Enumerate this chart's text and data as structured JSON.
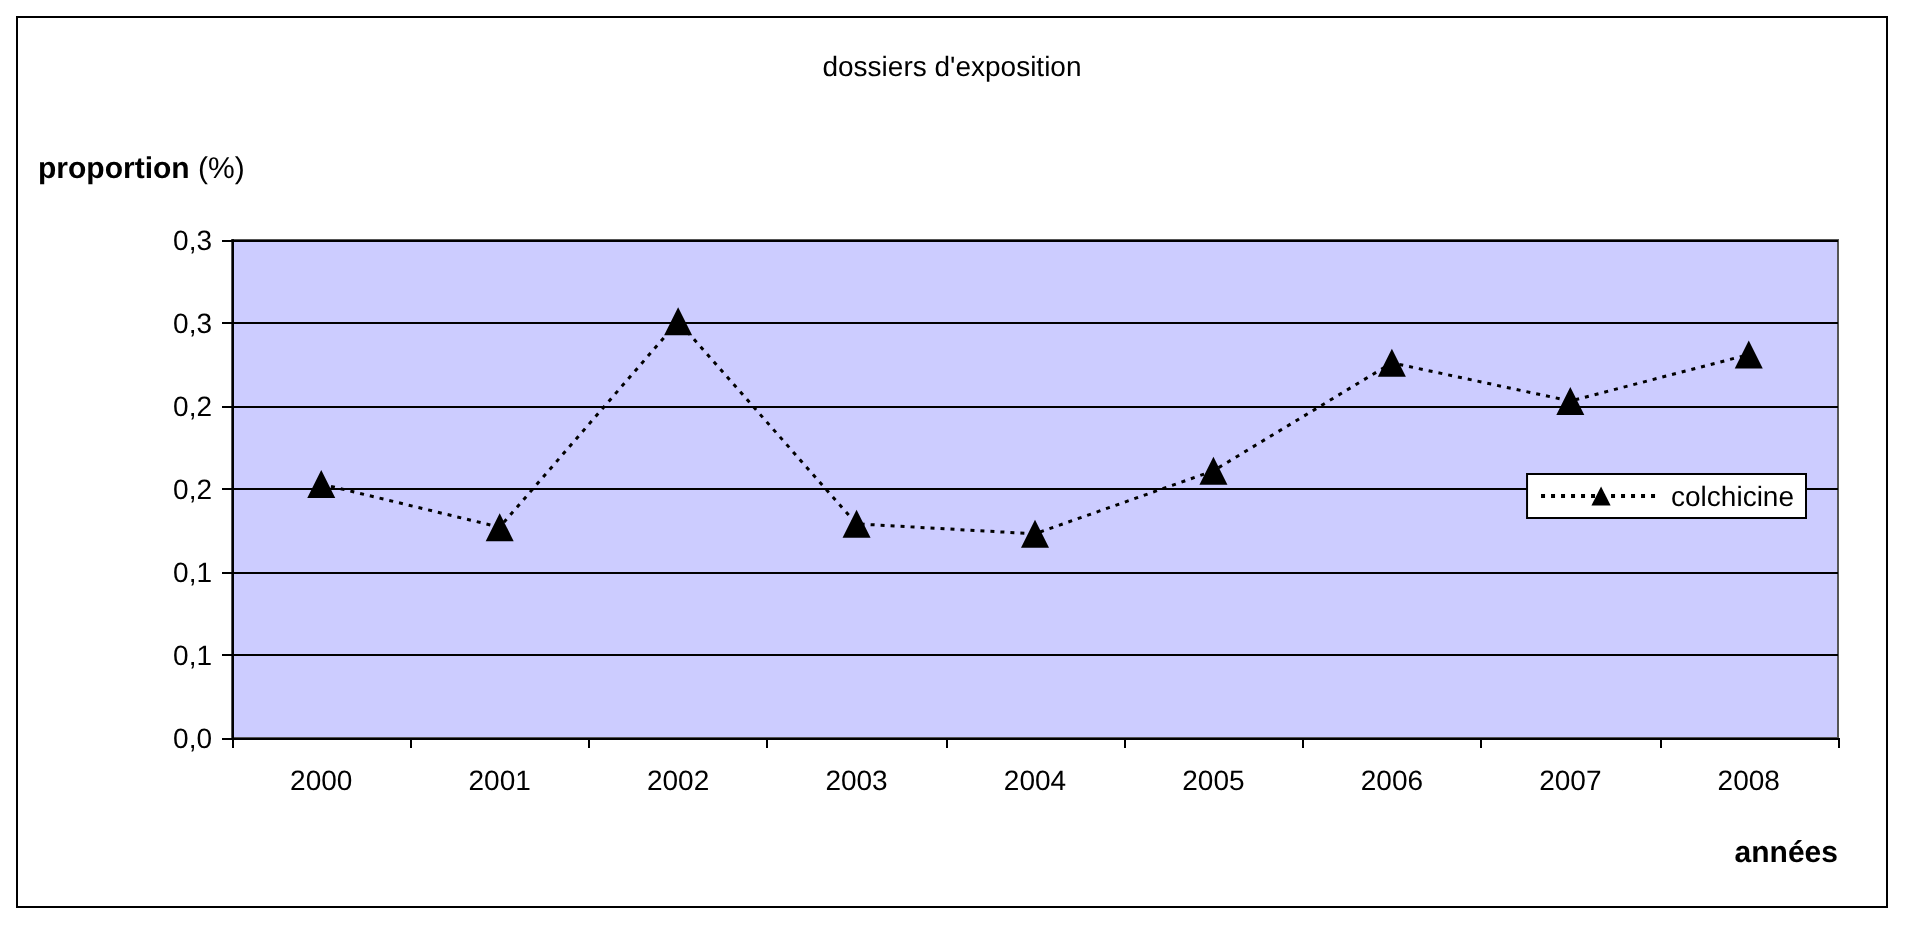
{
  "chart_data": {
    "type": "line",
    "title": "dossiers d'exposition",
    "ylabel": "proportion (%)",
    "xlabel": "années",
    "categories": [
      "2000",
      "2001",
      "2002",
      "2003",
      "2004",
      "2005",
      "2006",
      "2007",
      "2008"
    ],
    "series": [
      {
        "name": "colchicine",
        "color": "#000000",
        "values": [
          0.153,
          0.127,
          0.251,
          0.129,
          0.123,
          0.161,
          0.226,
          0.203,
          0.231
        ]
      }
    ],
    "ylim": [
      0,
      0.3
    ],
    "yticks": [
      {
        "value": 0,
        "label": "0,0"
      },
      {
        "value": 0.05,
        "label": "0,1"
      },
      {
        "value": 0.1,
        "label": "0,1"
      },
      {
        "value": 0.15,
        "label": "0,2"
      },
      {
        "value": 0.2,
        "label": "0,2"
      },
      {
        "value": 0.25,
        "label": "0,3"
      },
      {
        "value": 0.3,
        "label": "0,3"
      }
    ],
    "grid": "y",
    "legend": "right",
    "marker": "triangle",
    "line_style": "dotted"
  }
}
